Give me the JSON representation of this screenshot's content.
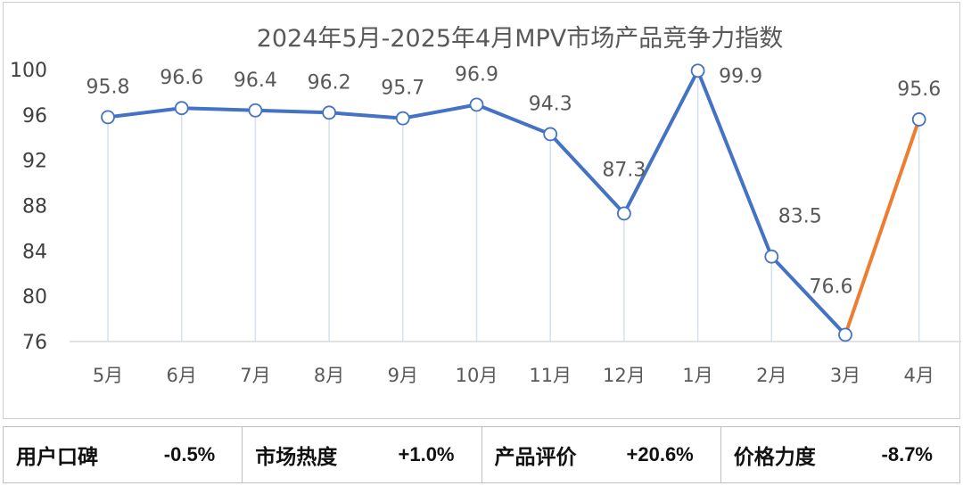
{
  "chart_data": {
    "type": "line",
    "title": "2024年5月-2025年4月MPV市场产品竞争力指数",
    "categories": [
      "5月",
      "6月",
      "7月",
      "8月",
      "9月",
      "10月",
      "11月",
      "12月",
      "1月",
      "2月",
      "3月",
      "4月"
    ],
    "values": [
      95.8,
      96.6,
      96.4,
      96.2,
      95.7,
      96.9,
      94.3,
      87.3,
      99.9,
      83.5,
      76.6,
      95.6
    ],
    "data_labels": [
      "95.8",
      "96.6",
      "96.4",
      "96.2",
      "95.7",
      "96.9",
      "94.3",
      "87.3",
      "99.9",
      "83.5",
      "76.6",
      "95.6"
    ],
    "yticks": [
      "76",
      "80",
      "84",
      "88",
      "92",
      "96",
      "100"
    ],
    "ylim": [
      76,
      100
    ],
    "xlabel": "",
    "ylabel": "",
    "grid": false,
    "line_color": "#4472C4",
    "highlight_color": "#ED7D31"
  },
  "summary": [
    {
      "label": "用户口碑",
      "value": "-0.5%"
    },
    {
      "label": "市场热度",
      "value": "+1.0%"
    },
    {
      "label": "产品评价",
      "value": "+20.6%"
    },
    {
      "label": "价格力度",
      "value": "-8.7%"
    }
  ]
}
